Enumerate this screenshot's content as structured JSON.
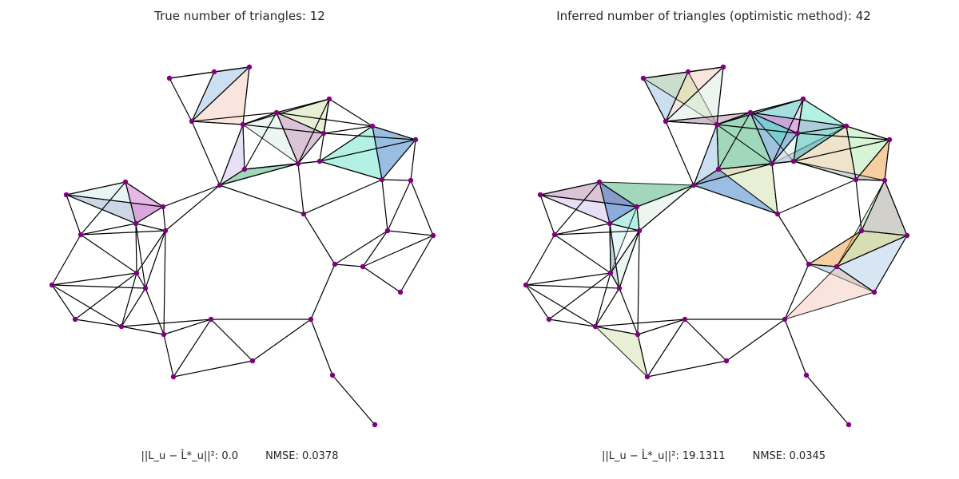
{
  "left_panel": {
    "title": "True number of triangles: 12",
    "footer_error": "||L_u − L̂*_u||²: 0.0",
    "footer_nmse": "NMSE: 0.0378"
  },
  "right_panel": {
    "title": "Inferred number of triangles (optimistic method): 42",
    "footer_error": "||L_u − L̂*_u||²: 19.1311",
    "footer_nmse": "NMSE: 0.0345"
  },
  "colors": {
    "node": "#800080",
    "edge": "#000000",
    "triangle_palette": [
      "#8fb8de",
      "#f2c6b4",
      "#c9dca0",
      "#d4e8dc",
      "#b07ca8",
      "#c8b8e8",
      "#2ea86b",
      "#1f6fbf",
      "#55e0c2",
      "#c9ece8",
      "#8fa7c8",
      "#e86ad8",
      "#a6e8a0",
      "#d6c38c",
      "#ee9030",
      "#a9c7e4"
    ]
  }
}
